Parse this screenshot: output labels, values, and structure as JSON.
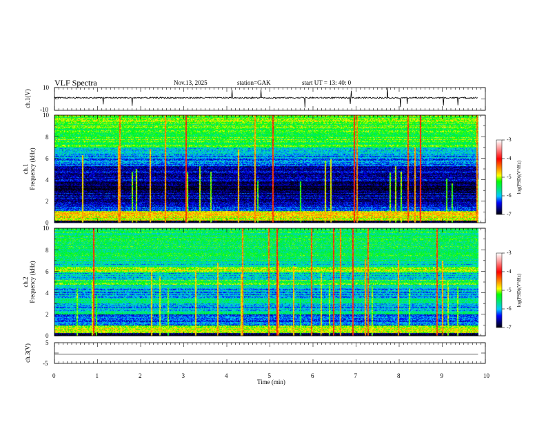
{
  "header": {
    "title": "VLF  Spectra",
    "date": "Nov.13, 2025",
    "station": "station=GAK",
    "start_ut": "start  UT =   13: 40: 0"
  },
  "chart_data": [
    {
      "type": "line",
      "name": "ch1-waveform",
      "ylabel": "ch.1(V)",
      "ylim": [
        -10,
        10
      ],
      "yticks": [
        "10",
        "-10"
      ],
      "xlim": [
        0,
        10
      ],
      "baseline_v": 1,
      "data_end_min": 9.83
    },
    {
      "type": "heatmap",
      "name": "ch1-spectrogram",
      "ylabel": "ch.1\nFrequency  (kHz)",
      "ylabel_line1": "ch.1",
      "ylabel_line2": "Frequency  (kHz)",
      "ylim": [
        0,
        10
      ],
      "yticks": [
        "0",
        "2",
        "4",
        "6",
        "8",
        "10"
      ],
      "xlim": [
        0,
        10
      ],
      "colorbar": {
        "label": "log(PSD)(V²/Hz)",
        "range": [
          -7,
          -3
        ],
        "ticks": [
          "-3",
          "-4",
          "-5",
          "-6",
          "-7"
        ]
      }
    },
    {
      "type": "heatmap",
      "name": "ch2-spectrogram",
      "ylabel_line1": "ch.2",
      "ylabel_line2": "Frequency  (kHz)",
      "ylim": [
        0,
        10
      ],
      "yticks": [
        "0",
        "2",
        "4",
        "6",
        "8",
        "10"
      ],
      "xlim": [
        0,
        10
      ],
      "colorbar": {
        "label": "log(PSD)(V²/Hz)",
        "range": [
          -7,
          -3
        ],
        "ticks": [
          "-3",
          "-4",
          "-5",
          "-6",
          "-7"
        ]
      }
    },
    {
      "type": "line",
      "name": "ch3-waveform",
      "ylabel": "ch.3(V)",
      "ylim": [
        -5,
        5
      ],
      "yticks": [
        "5",
        "-5"
      ],
      "xlim": [
        0,
        10
      ],
      "constant_v": -0.5,
      "data_end_min": 9.83
    }
  ],
  "xaxis": {
    "label": "Time  (min)",
    "ticks": [
      "0",
      "1",
      "2",
      "3",
      "4",
      "5",
      "6",
      "7",
      "8",
      "9",
      "10"
    ]
  },
  "colors": {
    "axis": "#000000",
    "ch3_line": "#555555"
  }
}
